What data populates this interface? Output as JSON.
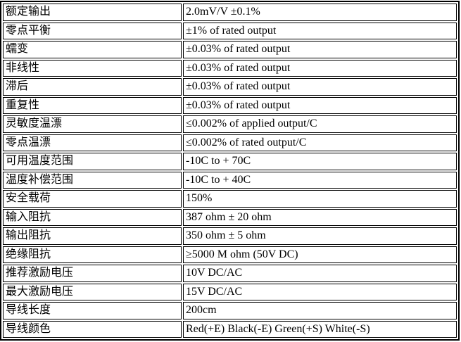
{
  "table": {
    "name": "load-cell-specification-table",
    "columns": [
      "parameter",
      "value"
    ],
    "rows": [
      {
        "label": "额定输出",
        "value": "2.0mV/V ±0.1%"
      },
      {
        "label": "零点平衡",
        "value": "±1% of rated output"
      },
      {
        "label": "蠕变",
        "value": "±0.03% of rated output"
      },
      {
        "label": "非线性",
        "value": "±0.03% of rated output"
      },
      {
        "label": "滞后",
        "value": "±0.03% of rated output"
      },
      {
        "label": "重复性",
        "value": "±0.03% of rated output"
      },
      {
        "label": "灵敏度温漂",
        "value": "≤0.002% of applied output/C"
      },
      {
        "label": "零点温漂",
        "value": "≤0.002% of rated output/C"
      },
      {
        "label": "可用温度范围",
        "value": "-10C to + 70C"
      },
      {
        "label": "温度补偿范围",
        "value": "-10C to + 40C"
      },
      {
        "label": "安全载荷",
        "value": "150%"
      },
      {
        "label": "输入阻抗",
        "value": "387 ohm ± 20 ohm"
      },
      {
        "label": "输出阻抗",
        "value": "350 ohm ± 5 ohm"
      },
      {
        "label": "绝缘阻抗",
        "value": "≥5000 M ohm (50V DC)"
      },
      {
        "label": "推荐激励电压",
        "value": "10V DC/AC"
      },
      {
        "label": "最大激励电压",
        "value": "15V DC/AC"
      },
      {
        "label": "导线长度",
        "value": "200cm"
      },
      {
        "label": "导线颜色",
        "value": "Red(+E) Black(-E) Green(+S) White(-S)"
      }
    ],
    "colors": {
      "border": "#000000",
      "text": "#000000",
      "background": "#ffffff"
    }
  }
}
